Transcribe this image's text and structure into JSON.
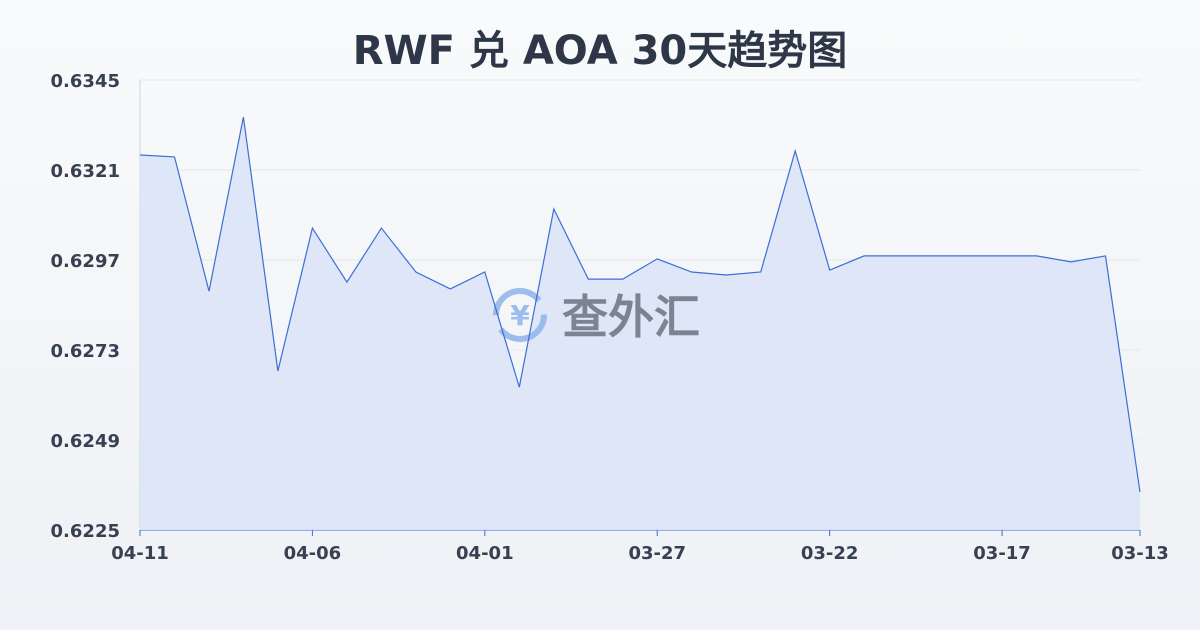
{
  "chart_data": {
    "type": "area",
    "title": "RWF 兑 AOA 30天趋势图",
    "xlabel": "",
    "ylabel": "",
    "ylim": [
      0.6225,
      0.6345
    ],
    "y_ticks": [
      "0.6345",
      "0.6321",
      "0.6297",
      "0.6273",
      "0.6249",
      "0.6225"
    ],
    "x_ticks": [
      "04-11",
      "04-06",
      "04-01",
      "03-27",
      "03-22",
      "03-17",
      "03-13"
    ],
    "x_tick_indices": [
      0,
      5,
      10,
      15,
      20,
      25,
      29
    ],
    "grid": true,
    "colors": {
      "line": "#3b6fd6",
      "fill": "#dbe4f7"
    },
    "values": [
      0.6325,
      0.63245,
      0.62887,
      0.63351,
      0.62674,
      0.63055,
      0.62911,
      0.63055,
      0.62938,
      0.62893,
      0.62938,
      0.62631,
      0.63106,
      0.62919,
      0.62919,
      0.62973,
      0.62938,
      0.6293,
      0.62938,
      0.63261,
      0.62943,
      0.62981,
      0.62981,
      0.62981,
      0.62981,
      0.62981,
      0.62981,
      0.62965,
      0.62981,
      0.62351
    ]
  },
  "watermark": {
    "text": "查外汇",
    "icon": "yen-exchange-icon"
  }
}
